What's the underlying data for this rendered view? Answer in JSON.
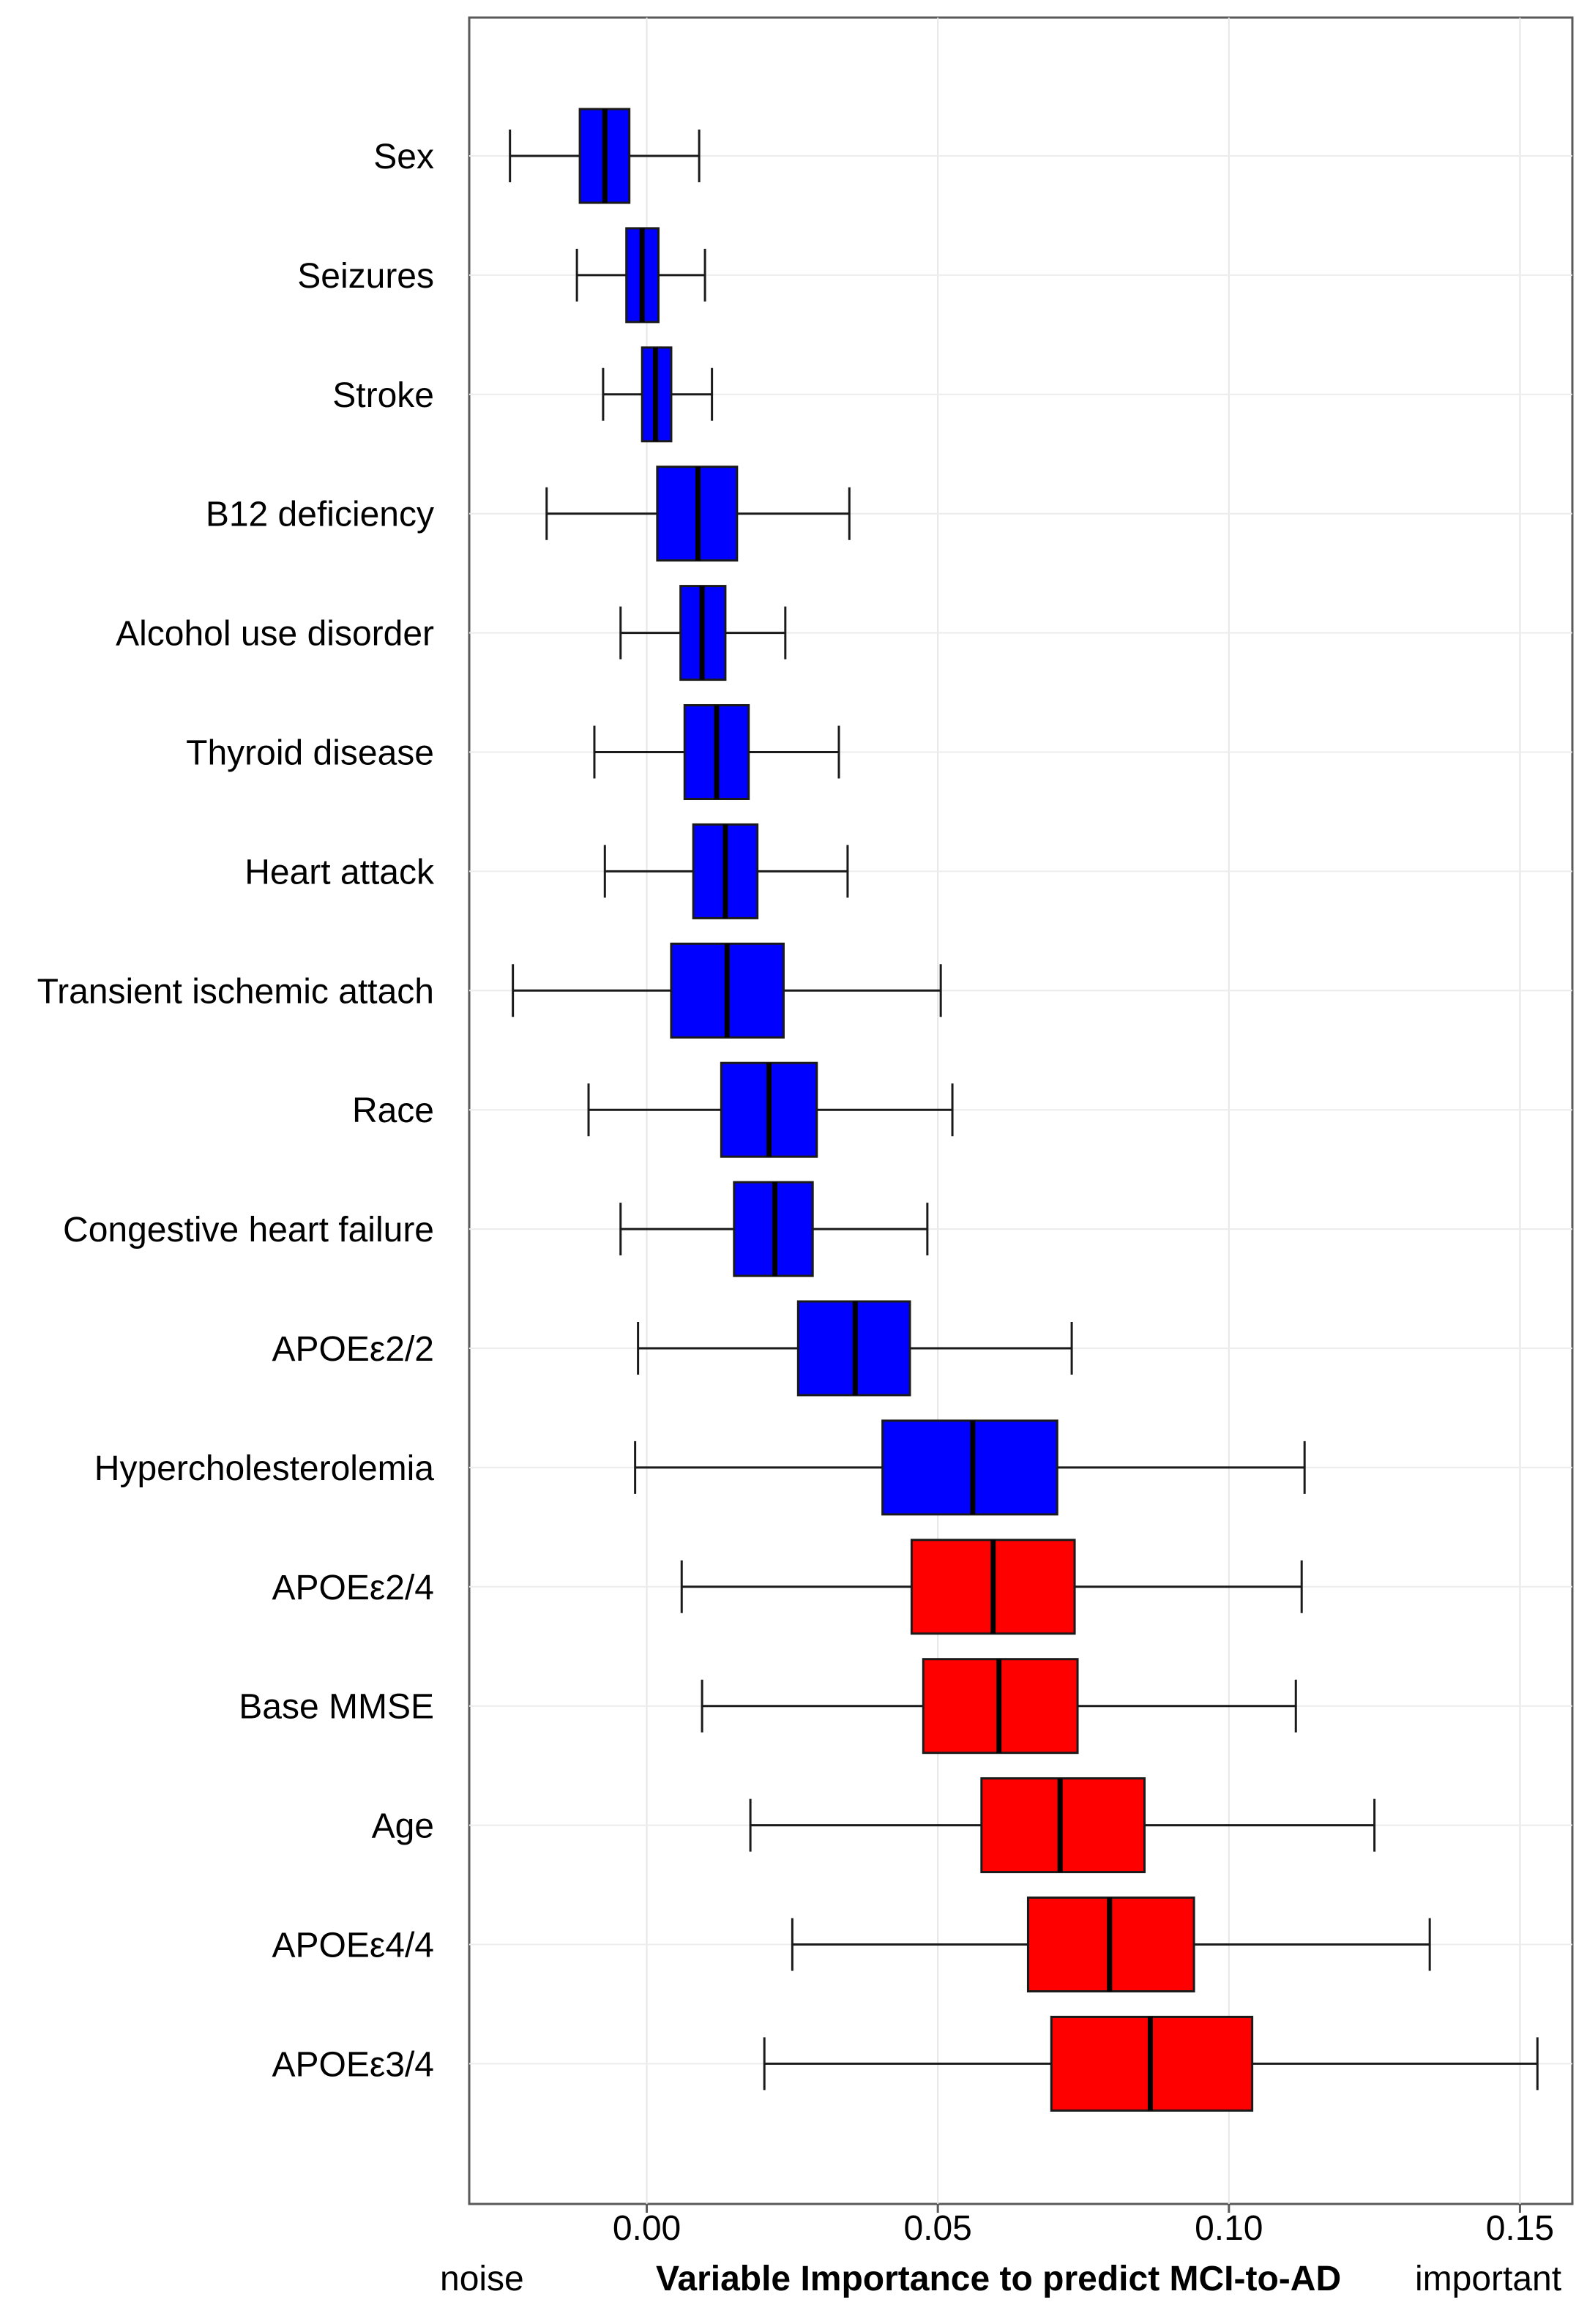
{
  "chart_data": {
    "type": "boxplot",
    "title": "",
    "xlabel": "Variable Importance to predict MCI-to-AD",
    "ylabel": "",
    "footer_left": "noise",
    "footer_right": "important",
    "xlim": [
      -0.0305,
      0.159
    ],
    "xticks": [
      0.0,
      0.05,
      0.1,
      0.15
    ],
    "xtick_labels": [
      "0.00",
      "0.05",
      "0.10",
      "0.15"
    ],
    "grid": true,
    "colors": {
      "noise": "#0000ff",
      "important": "#ff0000"
    },
    "categories": [
      "Sex",
      "Seizures",
      "Stroke",
      "B12 deficiency",
      "Alcohol use disorder",
      "Thyroid disease",
      "Heart attack",
      "Transient ischemic attach",
      "Race",
      "Congestive heart failure",
      "APOEε2/2",
      "Hypercholesterolemia",
      "APOEε2/4",
      "Base MMSE",
      "Age",
      "APOEε4/4",
      "APOEε3/4"
    ],
    "boxes": [
      {
        "label": "Sex",
        "whisker_low": -0.0235,
        "q1": -0.0115,
        "median": -0.0072,
        "q3": -0.003,
        "whisker_high": 0.009,
        "group": "noise"
      },
      {
        "label": "Seizures",
        "whisker_low": -0.012,
        "q1": -0.0035,
        "median": -0.0008,
        "q3": 0.002,
        "whisker_high": 0.01,
        "group": "noise"
      },
      {
        "label": "Stroke",
        "whisker_low": -0.0075,
        "q1": -0.0008,
        "median": 0.0015,
        "q3": 0.0042,
        "whisker_high": 0.0112,
        "group": "noise"
      },
      {
        "label": "B12 deficiency",
        "whisker_low": -0.0172,
        "q1": 0.0018,
        "median": 0.0088,
        "q3": 0.0155,
        "whisker_high": 0.0348,
        "group": "noise"
      },
      {
        "label": "Alcohol use disorder",
        "whisker_low": -0.0045,
        "q1": 0.0058,
        "median": 0.0095,
        "q3": 0.0135,
        "whisker_high": 0.0238,
        "group": "noise"
      },
      {
        "label": "Thyroid disease",
        "whisker_low": -0.009,
        "q1": 0.0065,
        "median": 0.012,
        "q3": 0.0175,
        "whisker_high": 0.033,
        "group": "noise"
      },
      {
        "label": "Heart attack",
        "whisker_low": -0.0072,
        "q1": 0.008,
        "median": 0.0135,
        "q3": 0.019,
        "whisker_high": 0.0345,
        "group": "noise"
      },
      {
        "label": "Transient ischemic attach",
        "whisker_low": -0.023,
        "q1": 0.0042,
        "median": 0.0138,
        "q3": 0.0235,
        "whisker_high": 0.0505,
        "group": "noise"
      },
      {
        "label": "Race",
        "whisker_low": -0.01,
        "q1": 0.0128,
        "median": 0.021,
        "q3": 0.0292,
        "whisker_high": 0.0525,
        "group": "noise"
      },
      {
        "label": "Congestive heart failure",
        "whisker_low": -0.0045,
        "q1": 0.015,
        "median": 0.022,
        "q3": 0.0285,
        "whisker_high": 0.0482,
        "group": "noise"
      },
      {
        "label": "APOEε2/2",
        "whisker_low": -0.0015,
        "q1": 0.026,
        "median": 0.0358,
        "q3": 0.0452,
        "whisker_high": 0.073,
        "group": "noise"
      },
      {
        "label": "Hypercholesterolemia",
        "whisker_low": -0.002,
        "q1": 0.0405,
        "median": 0.056,
        "q3": 0.0705,
        "whisker_high": 0.113,
        "group": "noise"
      },
      {
        "label": "APOEε2/4",
        "whisker_low": 0.006,
        "q1": 0.0455,
        "median": 0.0595,
        "q3": 0.0735,
        "whisker_high": 0.1125,
        "group": "important"
      },
      {
        "label": "Base MMSE",
        "whisker_low": 0.0095,
        "q1": 0.0475,
        "median": 0.0605,
        "q3": 0.074,
        "whisker_high": 0.1115,
        "group": "important"
      },
      {
        "label": "Age",
        "whisker_low": 0.0178,
        "q1": 0.0575,
        "median": 0.071,
        "q3": 0.0855,
        "whisker_high": 0.125,
        "group": "important"
      },
      {
        "label": "APOEε4/4",
        "whisker_low": 0.025,
        "q1": 0.0655,
        "median": 0.0795,
        "q3": 0.094,
        "whisker_high": 0.1345,
        "group": "important"
      },
      {
        "label": "APOEε3/4",
        "whisker_low": 0.0202,
        "q1": 0.0695,
        "median": 0.0865,
        "q3": 0.104,
        "whisker_high": 0.153,
        "group": "important"
      }
    ]
  }
}
